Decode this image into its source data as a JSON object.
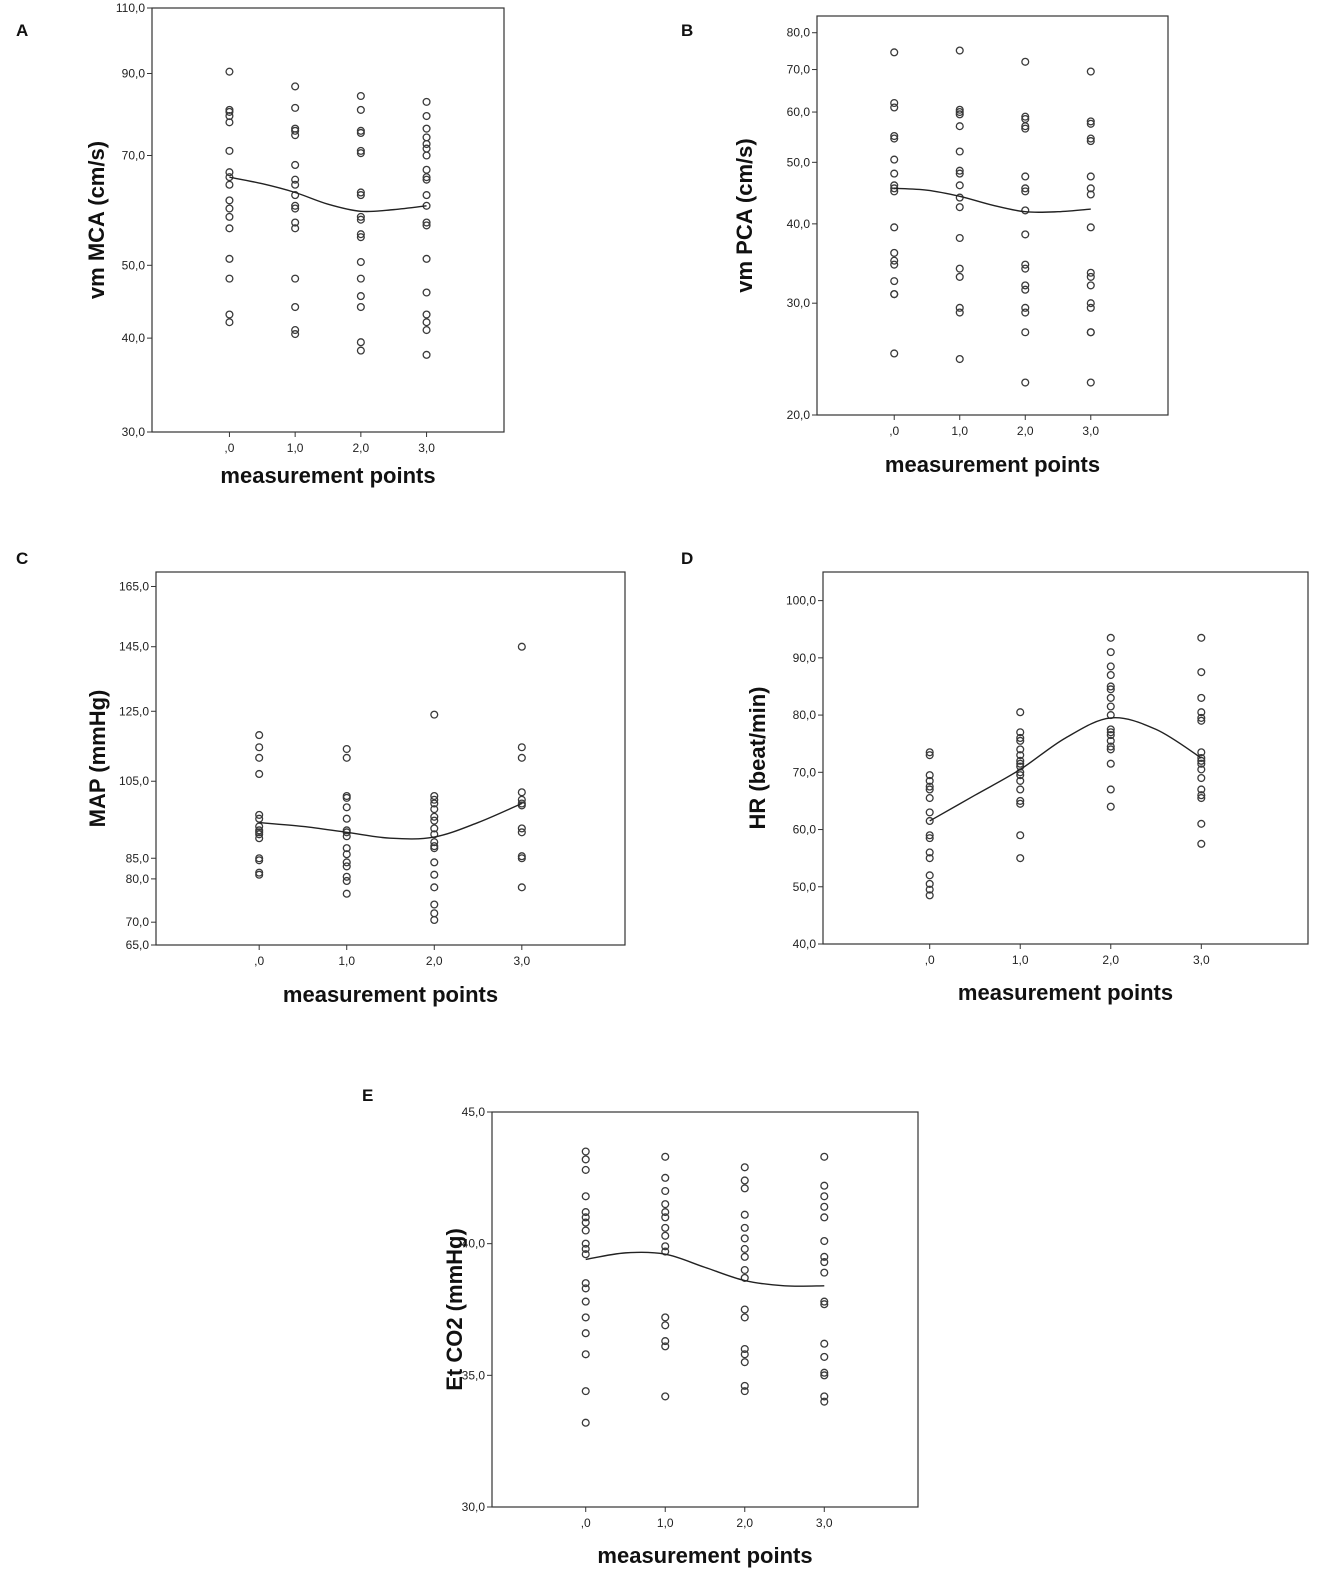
{
  "figure": {
    "colors": {
      "background": "#ffffff",
      "ink": "#222222"
    }
  },
  "chart_data": [
    {
      "panel": "A",
      "type": "scatter",
      "title": "",
      "xlabel": "measurement points",
      "ylabel": "vm MCA  (cm/s)",
      "x_tick_labels": [
        ",0",
        "1,0",
        "2,0",
        "3,0"
      ],
      "x_ticks": [
        0,
        1,
        2,
        3
      ],
      "y_ticks": [
        30,
        40,
        50,
        70,
        90,
        110
      ],
      "y_tick_labels": [
        "30,0",
        "40,0",
        "50,0",
        "70,0",
        "90,0",
        "110,0"
      ],
      "y_scale": "log",
      "ylim": [
        30,
        110
      ],
      "series": [
        {
          "name": "x=0",
          "x": 0,
          "values": [
            90.5,
            80.5,
            80,
            79,
            77.5,
            71,
            66.5,
            65.5,
            64,
            61,
            59.5,
            58,
            56,
            51,
            48,
            43,
            42
          ]
        },
        {
          "name": "x=1",
          "x": 1,
          "values": [
            86.5,
            81,
            76,
            75.5,
            74.5,
            68,
            65,
            64,
            62,
            60,
            59.5,
            57,
            56,
            48,
            44,
            41,
            40.5
          ]
        },
        {
          "name": "x=2",
          "x": 2,
          "values": [
            84,
            80.5,
            75.5,
            75,
            71,
            70.5,
            62.5,
            62,
            58,
            57.5,
            55,
            54.5,
            50.5,
            48,
            45.5,
            44,
            39.5,
            38.5
          ]
        },
        {
          "name": "x=3",
          "x": 3,
          "values": [
            82.5,
            79,
            76,
            74,
            72.5,
            71.5,
            70,
            67,
            65.5,
            65,
            62,
            60,
            57,
            56.5,
            51,
            46,
            43,
            42,
            41,
            38
          ]
        }
      ],
      "fit_line": {
        "x": [
          0,
          0.5,
          1,
          1.5,
          2,
          2.5,
          3
        ],
        "y": [
          65.5,
          64.2,
          62.5,
          60.3,
          59,
          59.3,
          60
        ]
      }
    },
    {
      "panel": "B",
      "type": "scatter",
      "title": "",
      "xlabel": "measurement points",
      "ylabel": "vm PCA (cm/s)",
      "x_tick_labels": [
        ",0",
        "1,0",
        "2,0",
        "3,0"
      ],
      "x_ticks": [
        0,
        1,
        2,
        3
      ],
      "y_ticks": [
        20,
        30,
        40,
        50,
        60,
        70,
        80
      ],
      "y_tick_labels": [
        "20,0",
        "30,0",
        "40,0",
        "50,0",
        "60,0",
        "70,0",
        "80,0"
      ],
      "y_scale": "log",
      "ylim": [
        20,
        85
      ],
      "series": [
        {
          "name": "x=0",
          "x": 0,
          "values": [
            74.5,
            62,
            61,
            55,
            54.5,
            50.5,
            48,
            46,
            45.5,
            45,
            39.5,
            36,
            35,
            34.5,
            32.5,
            31,
            31,
            25
          ]
        },
        {
          "name": "x=1",
          "x": 1,
          "values": [
            75,
            60.5,
            60,
            59.5,
            57,
            52,
            48.5,
            48,
            46,
            44,
            42.5,
            38,
            34,
            33,
            29.5,
            29,
            24.5
          ]
        },
        {
          "name": "x=2",
          "x": 2,
          "values": [
            72,
            59,
            58.5,
            57,
            56.5,
            47.5,
            45.5,
            45,
            42,
            38.5,
            34.5,
            34,
            32,
            31.5,
            29.5,
            29,
            27,
            22.5
          ]
        },
        {
          "name": "x=3",
          "x": 3,
          "values": [
            69.5,
            58,
            57.5,
            54.5,
            54,
            47.5,
            45.5,
            44.5,
            39.5,
            33.5,
            33,
            32,
            30,
            29.5,
            27,
            27,
            22.5
          ]
        }
      ],
      "fit_line": {
        "x": [
          0,
          0.5,
          1,
          1.5,
          2,
          2.5,
          3
        ],
        "y": [
          45.5,
          45.2,
          44.2,
          42.8,
          41.8,
          41.8,
          42.2
        ]
      }
    },
    {
      "panel": "C",
      "type": "scatter",
      "title": "",
      "xlabel": "measurement points",
      "ylabel": "MAP (mmHg)",
      "x_tick_labels": [
        ",0",
        "1,0",
        "2,0",
        "3,0"
      ],
      "x_ticks": [
        0,
        1,
        2,
        3
      ],
      "y_ticks": [
        65,
        70,
        80,
        85,
        105,
        125,
        145,
        165
      ],
      "y_tick_labels": [
        "65,0",
        "70,0",
        "80,0",
        "85,0",
        "105,0",
        "125,0",
        "145,0",
        "165,0"
      ],
      "y_scale": "sqrt",
      "ylim": [
        65,
        170
      ],
      "series": [
        {
          "name": "x=0",
          "x": 0,
          "values": [
            118,
            114.5,
            111.5,
            107,
            96,
            95,
            93,
            92,
            91.5,
            91,
            90,
            85,
            84.5,
            81.5,
            81
          ]
        },
        {
          "name": "x=1",
          "x": 1,
          "values": [
            114,
            111.5,
            101,
            100.5,
            98,
            95,
            92,
            91.5,
            90.5,
            87.5,
            86,
            84,
            83,
            80.5,
            79.5,
            76.5
          ]
        },
        {
          "name": "x=2",
          "x": 2,
          "values": [
            124,
            101,
            100,
            99,
            97.5,
            95.5,
            94.5,
            92.5,
            91,
            89,
            88,
            87.5,
            84,
            81,
            78,
            74,
            72,
            70.5
          ]
        },
        {
          "name": "x=3",
          "x": 3,
          "values": [
            145,
            114.5,
            111.5,
            102,
            100,
            99,
            98.5,
            92.5,
            91.5,
            85.5,
            85,
            78
          ]
        }
      ],
      "fit_line": {
        "x": [
          0,
          0.5,
          1,
          1.5,
          2,
          2.5,
          3
        ],
        "y": [
          94,
          93,
          91.5,
          90,
          90.3,
          94,
          99
        ]
      }
    },
    {
      "panel": "D",
      "type": "scatter",
      "title": "",
      "xlabel": "measurement points",
      "ylabel": "HR (beat/min)",
      "x_tick_labels": [
        ",0",
        "1,0",
        "2,0",
        "3,0"
      ],
      "x_ticks": [
        0,
        1,
        2,
        3
      ],
      "y_ticks": [
        40,
        50,
        60,
        70,
        80,
        90,
        100
      ],
      "y_tick_labels": [
        "40,0",
        "50,0",
        "60,0",
        "70,0",
        "80,0",
        "90,0",
        "100,0"
      ],
      "y_scale": "linear",
      "ylim": [
        40,
        105
      ],
      "series": [
        {
          "name": "x=0",
          "x": 0,
          "values": [
            73.5,
            73,
            69.5,
            68.5,
            67.5,
            67,
            65.5,
            63,
            61.5,
            59,
            58.5,
            56,
            55,
            52,
            50.5,
            49.5,
            48.5
          ]
        },
        {
          "name": "x=1",
          "x": 1,
          "values": [
            80.5,
            77,
            76,
            75.5,
            74,
            73,
            72,
            71.5,
            71,
            70,
            69.5,
            68.5,
            67,
            65,
            64.5,
            59,
            55
          ]
        },
        {
          "name": "x=2",
          "x": 2,
          "values": [
            93.5,
            91,
            88.5,
            87,
            85,
            84.5,
            83,
            81.5,
            80,
            77.5,
            77,
            76.5,
            75.5,
            74.5,
            74,
            71.5,
            67,
            64
          ]
        },
        {
          "name": "x=3",
          "x": 3,
          "values": [
            93.5,
            87.5,
            83,
            80.5,
            79.5,
            79,
            73.5,
            72.5,
            72,
            71.5,
            70.5,
            69,
            67,
            66,
            65.5,
            61,
            57.5
          ]
        }
      ],
      "fit_line": {
        "x": [
          0,
          0.5,
          1,
          1.5,
          2,
          2.5,
          3
        ],
        "y": [
          61.5,
          66,
          70.5,
          76,
          79.5,
          77.5,
          72.5
        ]
      }
    },
    {
      "panel": "E",
      "type": "scatter",
      "title": "",
      "xlabel": "measurement points",
      "ylabel": "Et CO2 (mmHg)",
      "x_tick_labels": [
        ",0",
        "1,0",
        "2,0",
        "3,0"
      ],
      "x_ticks": [
        0,
        1,
        2,
        3
      ],
      "y_ticks": [
        30,
        35,
        40,
        45
      ],
      "y_tick_labels": [
        "30,0",
        "35,0",
        "40,0",
        "45,0"
      ],
      "y_scale": "linear",
      "ylim": [
        30,
        45
      ],
      "series": [
        {
          "name": "x=0",
          "x": 0,
          "values": [
            43.5,
            43.2,
            42.8,
            41.8,
            41.2,
            41,
            40.8,
            40.5,
            40,
            39.8,
            39.6,
            38.5,
            38.3,
            37.8,
            37.2,
            36.6,
            35.8,
            34.4,
            33.2
          ]
        },
        {
          "name": "x=1",
          "x": 1,
          "values": [
            43.3,
            42.5,
            42,
            41.5,
            41.2,
            41,
            40.6,
            40.3,
            39.9,
            39.7,
            37.2,
            36.9,
            36.3,
            36.1,
            34.2
          ]
        },
        {
          "name": "x=2",
          "x": 2,
          "values": [
            42.9,
            42.4,
            42.1,
            41.1,
            40.6,
            40.2,
            39.8,
            39.5,
            39,
            38.7,
            37.5,
            37.2,
            36,
            35.8,
            35.5,
            34.6,
            34.4
          ]
        },
        {
          "name": "x=3",
          "x": 3,
          "values": [
            43.3,
            42.2,
            41.8,
            41.4,
            41,
            40.1,
            39.5,
            39.3,
            38.9,
            37.8,
            37.7,
            36.2,
            35.7,
            35.1,
            35,
            34.2,
            34
          ]
        }
      ],
      "fit_line": {
        "x": [
          0,
          0.5,
          1,
          1.5,
          2,
          2.5,
          3
        ],
        "y": [
          39.4,
          39.65,
          39.6,
          39.1,
          38.6,
          38.4,
          38.4
        ]
      }
    }
  ]
}
